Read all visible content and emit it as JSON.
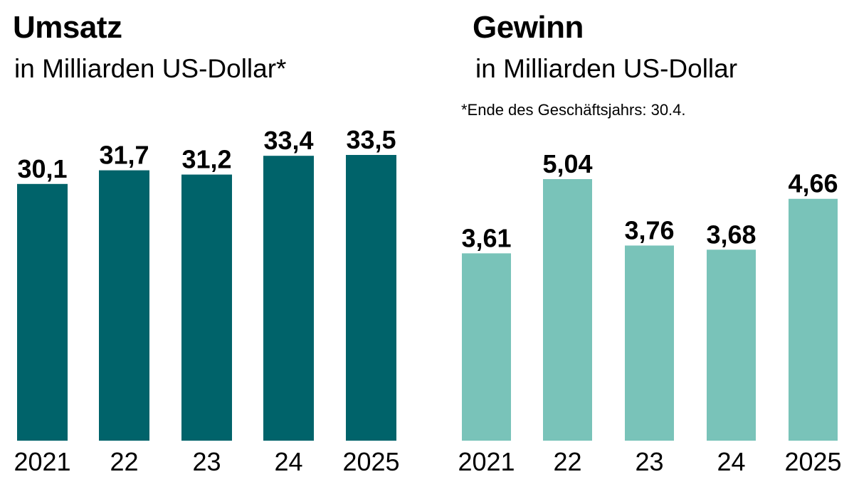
{
  "chart_data": [
    {
      "type": "bar",
      "title": "Umsatz",
      "subtitle": "in Milliarden US-Dollar*",
      "categories": [
        "2021",
        "22",
        "23",
        "24",
        "2025"
      ],
      "values": [
        30.1,
        31.7,
        31.2,
        33.4,
        33.5
      ],
      "value_labels": [
        "30,1",
        "31,7",
        "31,2",
        "33,4",
        "33,5"
      ],
      "color": "#00636a",
      "ylim": [
        0,
        33.5
      ],
      "grid": false
    },
    {
      "type": "bar",
      "title": "Gewinn",
      "subtitle": "in Milliarden US-Dollar",
      "categories": [
        "2021",
        "22",
        "23",
        "24",
        "2025"
      ],
      "values": [
        3.61,
        5.04,
        3.76,
        3.68,
        4.66
      ],
      "value_labels": [
        "3,61",
        "5,04",
        "3,76",
        "3,68",
        "4,66"
      ],
      "color": "#79c3b9",
      "ylim": [
        0,
        5.04
      ],
      "grid": false
    }
  ],
  "footnote": "*Ende des Geschäftsjahrs: 30.4."
}
